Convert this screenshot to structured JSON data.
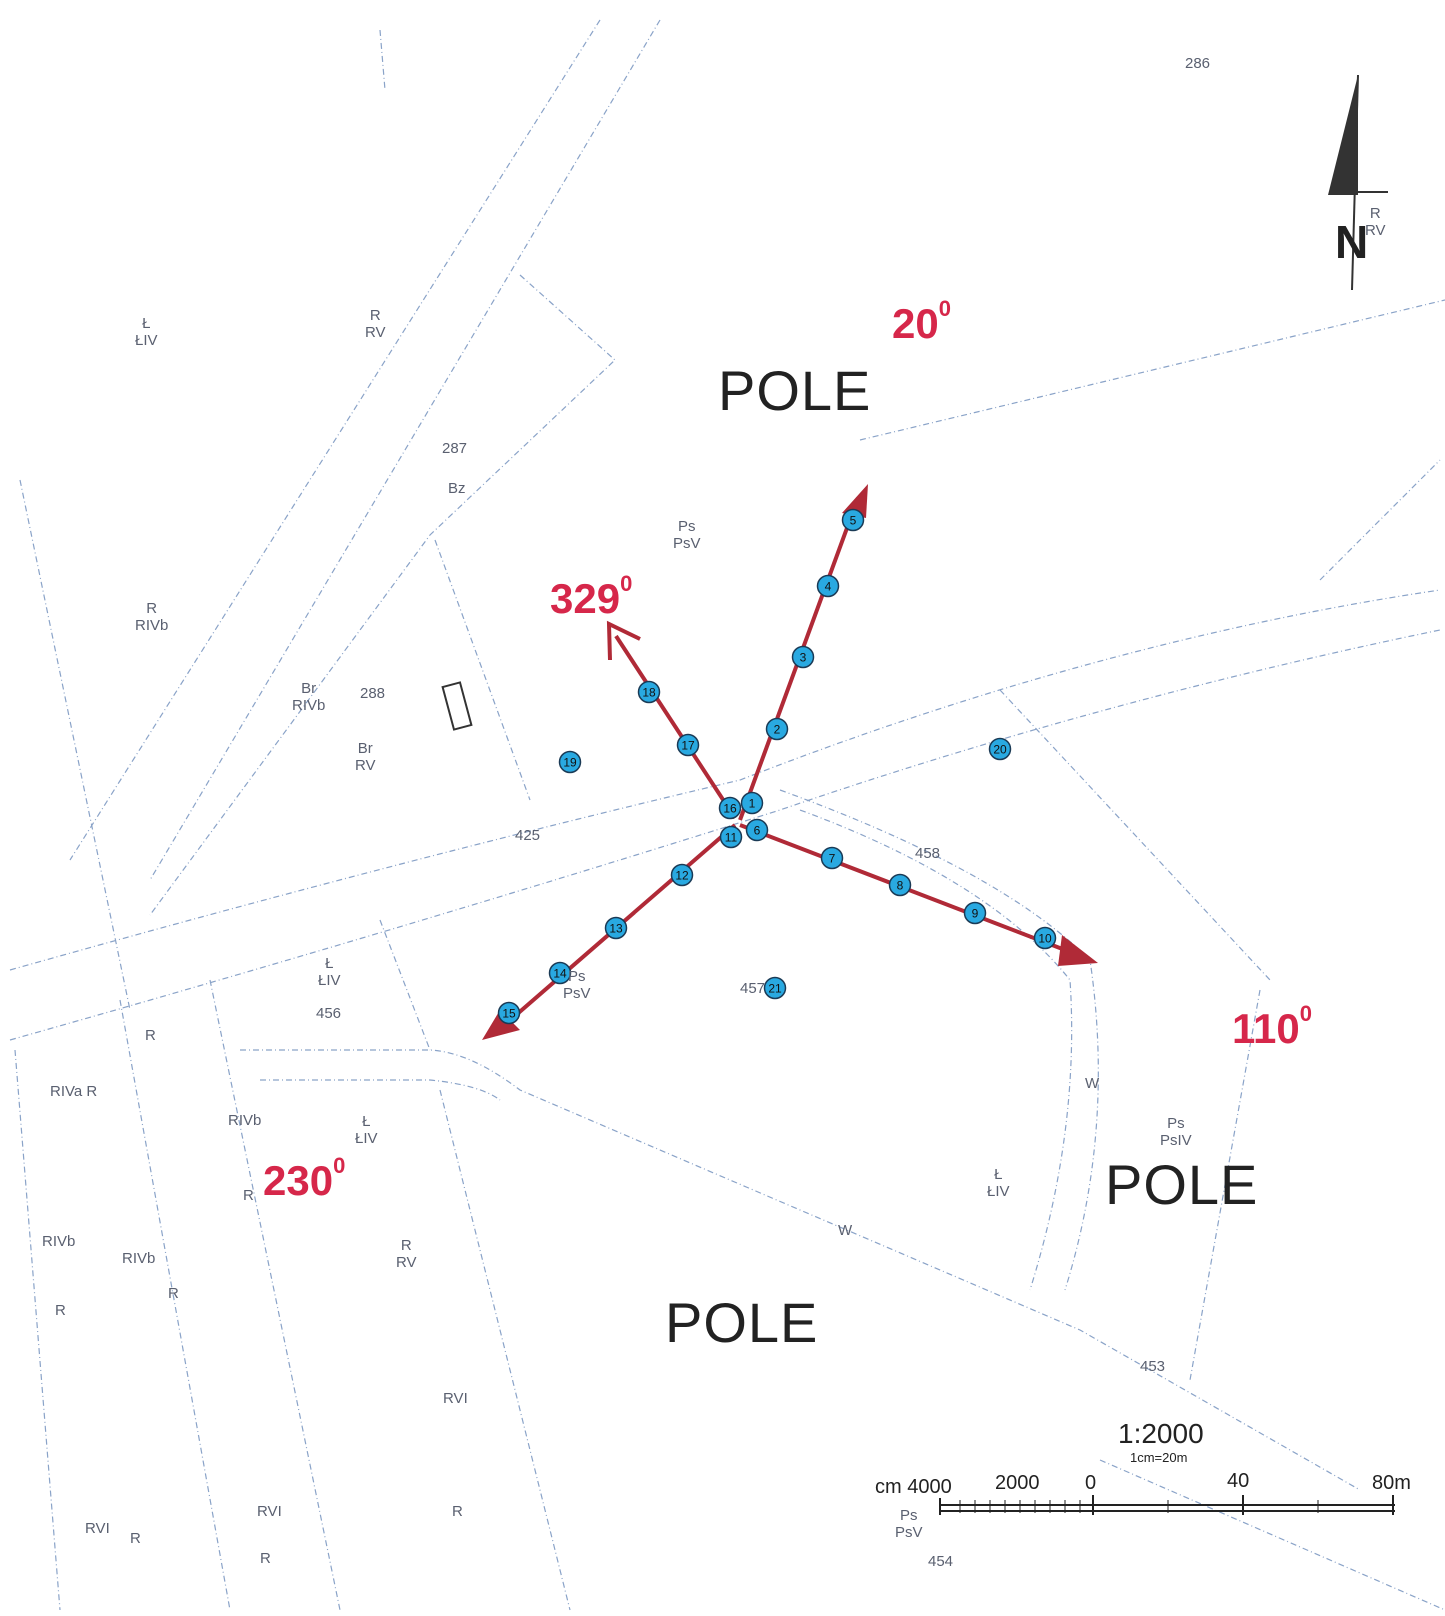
{
  "parcel_labels": [
    {
      "text": "286"
    },
    {
      "text": "Ł\nŁIV"
    },
    {
      "text": "R\nRV"
    },
    {
      "text": "287"
    },
    {
      "text": "Bz"
    },
    {
      "text": "Ps\nPsV"
    },
    {
      "text": "R\nRIVb"
    },
    {
      "text": "Br\nRIVb"
    },
    {
      "text": "288"
    },
    {
      "text": "Br\nRV"
    },
    {
      "text": "425"
    },
    {
      "text": "458"
    },
    {
      "text": "Ł\nŁIV"
    },
    {
      "text": "456"
    },
    {
      "text": "R"
    },
    {
      "text": "RIVa R"
    },
    {
      "text": "RIVb"
    },
    {
      "text": "Ł\nŁIV"
    },
    {
      "text": "R"
    },
    {
      "text": "Ps\nPsV"
    },
    {
      "text": "457"
    },
    {
      "text": "W"
    },
    {
      "text": "Ps\nPsIV"
    },
    {
      "text": "Ł\nŁIV"
    },
    {
      "text": "W"
    },
    {
      "text": "RIVb"
    },
    {
      "text": "RIVb"
    },
    {
      "text": "R"
    },
    {
      "text": "R"
    },
    {
      "text": "R\nRV"
    },
    {
      "text": "RVI"
    },
    {
      "text": "453"
    },
    {
      "text": "RVI"
    },
    {
      "text": "R"
    },
    {
      "text": "RVI"
    },
    {
      "text": "R"
    },
    {
      "text": "R"
    },
    {
      "text": "Ps\nPsV"
    },
    {
      "text": "454"
    },
    {
      "text": "R\nRV"
    }
  ],
  "area_names": [
    "POLE",
    "POLE",
    "POLE"
  ],
  "directions": [
    {
      "value": "20",
      "sup": "0"
    },
    {
      "value": "329",
      "sup": "0"
    },
    {
      "value": "230",
      "sup": "0"
    },
    {
      "value": "110",
      "sup": "0"
    }
  ],
  "measurement_points": [
    "1",
    "2",
    "3",
    "4",
    "5",
    "6",
    "7",
    "8",
    "9",
    "10",
    "11",
    "12",
    "13",
    "14",
    "15",
    "16",
    "17",
    "18",
    "19",
    "20",
    "21"
  ],
  "north_arrow": {
    "label": "N"
  },
  "scale": {
    "ratio": "1:2000",
    "note": "1cm=20m",
    "ticks": [
      "cm 4000",
      "2000",
      "0",
      "40",
      "80m"
    ]
  },
  "colors": {
    "arrow": "#b02a37",
    "angle_text": "#d6274a",
    "point_fill": "#29a9e1",
    "parcel_line": "#7d9cc4"
  }
}
